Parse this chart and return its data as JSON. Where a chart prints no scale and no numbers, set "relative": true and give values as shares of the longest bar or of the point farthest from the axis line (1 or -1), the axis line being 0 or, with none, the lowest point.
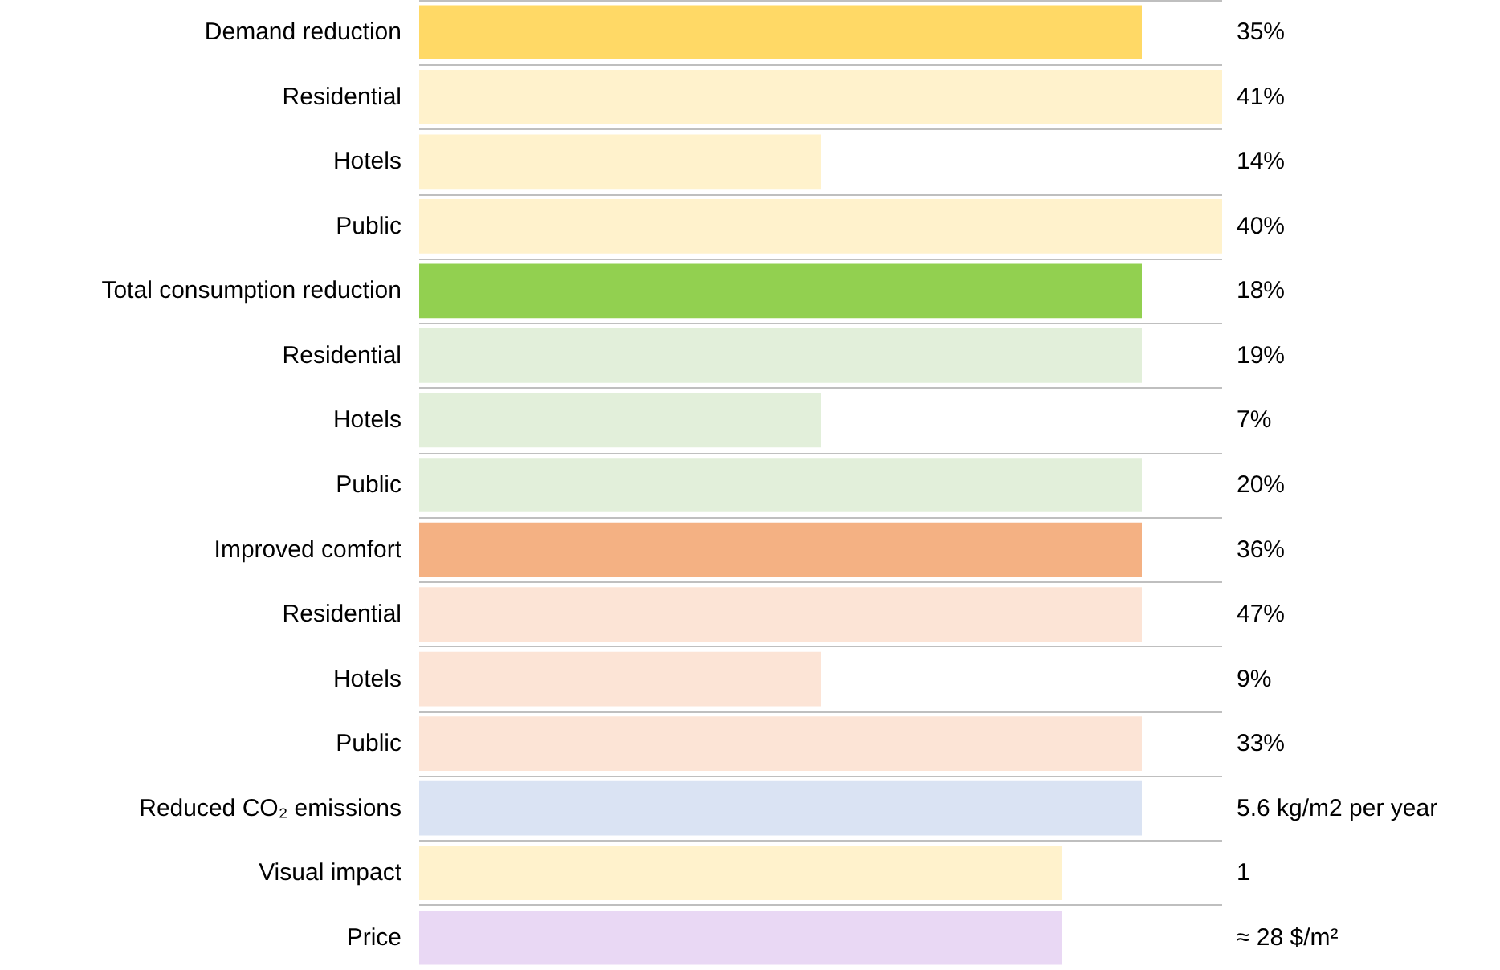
{
  "chart_data": {
    "type": "bar",
    "orientation": "horizontal",
    "relative": true,
    "grid": "y",
    "categories": [
      "Demand reduction",
      "Residential",
      "Hotels",
      "Public",
      "Total consumption reduction",
      "Residential",
      "Hotels",
      "Public",
      "Improved comfort",
      "Residential",
      "Hotels",
      "Public",
      "Reduced CO₂ emissions",
      "Visual impact",
      "Price"
    ],
    "values": [
      0.9,
      1,
      0.5,
      1,
      0.9,
      0.9,
      0.5,
      0.9,
      0.9,
      0.9,
      0.5,
      0.9,
      0.9,
      0.8,
      0.8
    ],
    "colors": [
      "#ffd966",
      "#fff2cc",
      "#fff2cc",
      "#fff2cc",
      "#92d050",
      "#e2efda",
      "#e2efda",
      "#e2efda",
      "#f4b183",
      "#fce4d6",
      "#fce4d6",
      "#fce4d6",
      "#dae3f3",
      "#fff2cc",
      "#e9d8f4"
    ],
    "annotations": [
      "35%",
      "41%",
      "14%",
      "40%",
      "18%",
      "19%",
      "7%",
      "20%",
      "36%",
      "47%",
      "9%",
      "33%",
      "5.6 kg/m2 per year",
      "1",
      "≈ 28 $/m²"
    ]
  }
}
